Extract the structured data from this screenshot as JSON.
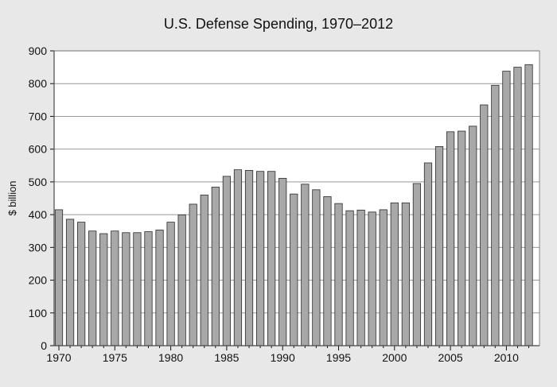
{
  "chart_data": {
    "type": "bar",
    "title": "U.S. Defense Spending, 1970–2012",
    "xlabel": "",
    "ylabel": "$ billion",
    "ylim": [
      0,
      900
    ],
    "yticks": [
      0,
      100,
      200,
      300,
      400,
      500,
      600,
      700,
      800,
      900
    ],
    "xtick_labels": [
      "1970",
      "1975",
      "1980",
      "1985",
      "1990",
      "1995",
      "2000",
      "2005",
      "2010"
    ],
    "grid": true,
    "colors": {
      "bar": "#a8a8a8",
      "bar_edge": "#2a2a2a",
      "plot_bg": "#ffffff",
      "frame_bg": "#e8e8e8",
      "grid": "#999999"
    },
    "categories": [
      1970,
      1971,
      1972,
      1973,
      1974,
      1975,
      1976,
      1977,
      1978,
      1979,
      1980,
      1981,
      1982,
      1983,
      1984,
      1985,
      1986,
      1987,
      1988,
      1989,
      1990,
      1991,
      1992,
      1993,
      1994,
      1995,
      1996,
      1997,
      1998,
      1999,
      2000,
      2001,
      2002,
      2003,
      2004,
      2005,
      2006,
      2007,
      2008,
      2009,
      2010,
      2011,
      2012
    ],
    "values": [
      415,
      386,
      377,
      350,
      342,
      350,
      345,
      345,
      348,
      353,
      377,
      399,
      432,
      460,
      484,
      517,
      537,
      535,
      532,
      532,
      511,
      463,
      493,
      476,
      455,
      434,
      412,
      414,
      408,
      415,
      436,
      436,
      495,
      558,
      608,
      653,
      655,
      670,
      735,
      795,
      838,
      850,
      858
    ]
  }
}
